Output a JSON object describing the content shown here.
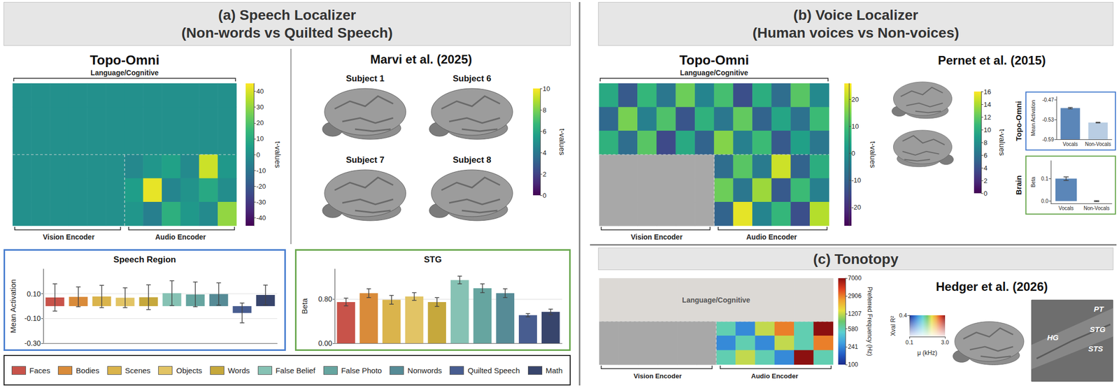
{
  "panels": [
    {
      "title": "(a) Speech Localizer",
      "subtitle": "(Non-words vs Quilted Speech)"
    },
    {
      "title": "(b) Voice Localizer",
      "subtitle": "(Human voices vs Non-voices)"
    },
    {
      "title": "(c) Tonotopy"
    }
  ],
  "chart_data": [
    {
      "type": "heatmap",
      "title": "Topo-Omni",
      "regions": [
        {
          "name": "Language/Cognitive",
          "values": [
            [
              0,
              0,
              0,
              0,
              0,
              0,
              0,
              0,
              0,
              0,
              0,
              0
            ],
            [
              0,
              0,
              0,
              0,
              0,
              0,
              0,
              0,
              0,
              0,
              0,
              0
            ],
            [
              0,
              0,
              0,
              0,
              0,
              0,
              0,
              0,
              0,
              0,
              0,
              0
            ]
          ]
        },
        {
          "name": "Vision Encoder",
          "values": [
            [
              0,
              0,
              0,
              0,
              0,
              0
            ],
            [
              0,
              0,
              0,
              0,
              0,
              0
            ],
            [
              0,
              0,
              0,
              0,
              0,
              0
            ]
          ]
        },
        {
          "name": "Audio Encoder",
          "values": [
            [
              -3,
              2,
              6,
              -2,
              38,
              3
            ],
            [
              5,
              42,
              -4,
              1,
              9,
              -1
            ],
            [
              2,
              -6,
              12,
              3,
              -2,
              30
            ]
          ]
        }
      ],
      "colorbar": {
        "label": "t-values",
        "range": [
          -45,
          45
        ],
        "ticks": [
          -40,
          -30,
          -20,
          -10,
          0,
          10,
          20,
          30,
          40
        ]
      }
    },
    {
      "type": "brain",
      "title": "Marvi et al. (2025)",
      "subjects": [
        "Subject 1",
        "Subject 6",
        "Subject 7",
        "Subject 8"
      ],
      "colorbar": {
        "label": "t-values",
        "range": [
          0,
          10
        ],
        "ticks": [
          0,
          2,
          4,
          6,
          8,
          10
        ]
      }
    },
    {
      "type": "bar",
      "title": "Speech Region",
      "ylabel": "Mean Activation",
      "categories": [
        "Faces",
        "Bodies",
        "Scenes",
        "Objects",
        "Words",
        "False Belief",
        "False Photo",
        "Nonwords",
        "Quilted Speech",
        "Math"
      ],
      "values": [
        0.07,
        0.075,
        0.078,
        0.068,
        0.072,
        0.105,
        0.095,
        0.098,
        -0.055,
        0.09
      ],
      "errors": [
        0.11,
        0.08,
        0.09,
        0.08,
        0.1,
        0.1,
        0.1,
        0.09,
        0.08,
        0.08
      ],
      "colors": [
        "#c8534a",
        "#d98b3a",
        "#dab44c",
        "#e2c465",
        "#c6a83c",
        "#86c2b4",
        "#66a5a0",
        "#568b96",
        "#485d90",
        "#38456c"
      ],
      "ylim": [
        -0.3,
        0.3
      ],
      "yticks": [
        {
          "value": -0.3,
          "label": "-0.30"
        },
        {
          "value": -0.1,
          "label": "-0.10"
        },
        {
          "value": 0.1,
          "label": "0.10"
        }
      ],
      "grid": true,
      "tick_labels": "y",
      "legend": "bottom"
    },
    {
      "type": "bar",
      "title": "STG",
      "ylabel": "Beta",
      "categories": [
        "Faces",
        "Bodies",
        "Scenes",
        "Objects",
        "Words",
        "False Belief",
        "False Photo",
        "Nonwords",
        "Quilted Speech",
        "Math"
      ],
      "values": [
        0.75,
        0.91,
        0.79,
        0.85,
        0.75,
        1.15,
        1.0,
        0.91,
        0.51,
        0.57
      ],
      "errors": [
        0.07,
        0.08,
        0.08,
        0.07,
        0.08,
        0.07,
        0.08,
        0.08,
        0.03,
        0.05
      ],
      "colors": [
        "#c8534a",
        "#d98b3a",
        "#dab44c",
        "#e2c465",
        "#c6a83c",
        "#86c2b4",
        "#66a5a0",
        "#568b96",
        "#485d90",
        "#38456c"
      ],
      "ylim": [
        0,
        1.35
      ],
      "yticks": [
        {
          "value": 0,
          "label": "0.00"
        },
        {
          "value": 0.8,
          "label": "0.80"
        }
      ],
      "grid": true,
      "tick_labels": "y"
    },
    {
      "type": "heatmap",
      "title": "Topo-Omni",
      "regions": [
        {
          "name": "Language/Cognitive",
          "values": [
            [
              5,
              -12,
              8,
              -6,
              14,
              -3,
              10,
              -14,
              6,
              -8,
              12,
              -2
            ],
            [
              -9,
              15,
              -4,
              11,
              -13,
              7,
              -6,
              13,
              -10,
              4,
              -7,
              9
            ],
            [
              7,
              -8,
              12,
              -15,
              5,
              -10,
              16,
              -4,
              9,
              -12,
              3,
              -6
            ]
          ]
        },
        {
          "name": "Vision Encoder",
          "values": [
            [
              null,
              null,
              null,
              null,
              null,
              null
            ],
            [
              null,
              null,
              null,
              null,
              null,
              null
            ],
            [
              null,
              null,
              null,
              null,
              null,
              null
            ]
          ]
        },
        {
          "name": "Audio Encoder",
          "values": [
            [
              -8,
              12,
              -5,
              22,
              -10,
              6
            ],
            [
              14,
              -6,
              18,
              -12,
              9,
              -4
            ],
            [
              -10,
              24,
              -3,
              8,
              -14,
              20
            ]
          ]
        }
      ],
      "colorbar": {
        "label": "t-values",
        "range": [
          -27,
          26
        ],
        "ticks": [
          -20,
          -10,
          0,
          10,
          20
        ]
      }
    },
    {
      "type": "brain",
      "title": "Pernet et al. (2015)",
      "colorbar": {
        "label": "t-values",
        "range": [
          0,
          16
        ],
        "ticks": [
          0,
          2,
          4,
          6,
          8,
          10,
          12,
          14,
          16
        ]
      }
    },
    {
      "type": "bar",
      "title": "Topo-Omni",
      "ylabel": "Mean Activation",
      "categories": [
        "Vocals",
        "Non-Vocals"
      ],
      "values": [
        -0.495,
        -0.539
      ],
      "errors": [
        0.002,
        0.001
      ],
      "colors": [
        "#5b86b8",
        "#b9cde3"
      ],
      "ylim": [
        -0.59,
        -0.46
      ],
      "yticks": [
        -0.59,
        -0.53,
        -0.47
      ],
      "grid": false
    },
    {
      "type": "bar",
      "title": "Brain",
      "ylabel": "Beta",
      "categories": [
        "Vocals",
        "Non-Vocals"
      ],
      "values": [
        0.1,
        0.0
      ],
      "errors": [
        0.008,
        0.002
      ],
      "colors": [
        "#5b86b8",
        "#b9cde3"
      ],
      "ylim": [
        -0.01,
        0.18
      ],
      "yticks": [
        {
          "value": 0,
          "label": "0.0"
        },
        0.1
      ],
      "grid": false
    },
    {
      "type": "heatmap",
      "regions": [
        {
          "name": "Language/Cognitive",
          "values": [
            [
              null,
              null,
              null,
              null,
              null,
              null,
              null,
              null,
              null,
              null,
              null,
              null
            ],
            [
              null,
              null,
              null,
              null,
              null,
              null,
              null,
              null,
              null,
              null,
              null,
              null
            ],
            [
              null,
              null,
              null,
              null,
              null,
              null,
              null,
              null,
              null,
              null,
              null,
              null
            ]
          ]
        },
        {
          "name": "Vision Encoder",
          "values": [
            [
              null,
              null,
              null,
              null,
              null,
              null
            ],
            [
              null,
              null,
              null,
              null,
              null,
              null
            ],
            [
              null,
              null,
              null,
              null,
              null,
              null
            ]
          ]
        },
        {
          "name": "Audio Encoder",
          "values": [
            [
              580,
              241,
              1207,
              2906,
              580,
              7000
            ],
            [
              241,
              580,
              241,
              1207,
              580,
              2906
            ],
            [
              580,
              1207,
              580,
              241,
              7000,
              580
            ]
          ]
        }
      ],
      "colorbar": {
        "label": "Preferred Frequency (Hz)",
        "range": [
          100,
          7000
        ],
        "ticks": [
          100,
          241,
          580,
          1207,
          2906,
          7000
        ],
        "log": true
      }
    },
    {
      "type": "brain",
      "title": "Hedger et al. (2026)",
      "region_labels": [
        "PT",
        "STG",
        "HG",
        "STS"
      ],
      "colorbar": {
        "xlabel": "μ (kHz)",
        "ylabel": "Xval R²",
        "xlim": [
          0.1,
          3.0
        ],
        "xticks": [
          0.1,
          {
            "value": 3.0,
            "label": "3.0"
          }
        ],
        "ylim": [
          0,
          0.4
        ],
        "yticks": [
          0.4
        ]
      }
    }
  ]
}
